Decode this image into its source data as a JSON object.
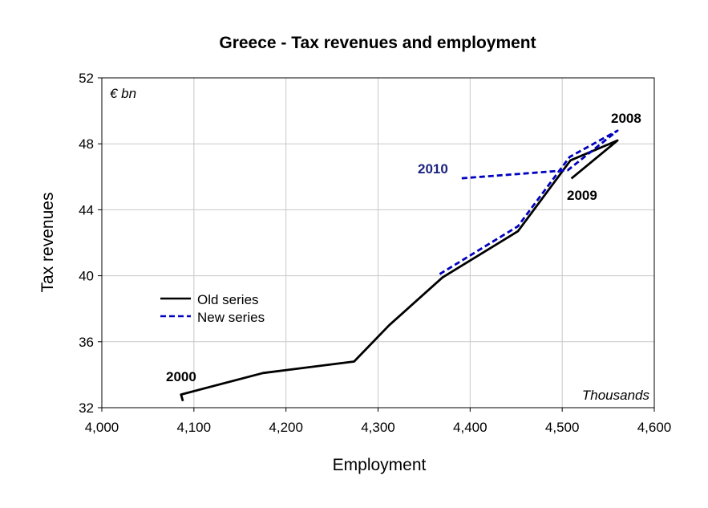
{
  "chart_data": {
    "type": "line",
    "title": "Greece - Tax revenues and employment",
    "xlabel": "Employment",
    "ylabel": "Tax revenues",
    "x_unit_label": "Thousands",
    "y_unit_label": "€ bn",
    "xlim": [
      4000,
      4600
    ],
    "ylim": [
      32,
      52
    ],
    "x_ticks": [
      4000,
      4100,
      4200,
      4300,
      4400,
      4500,
      4600
    ],
    "x_tick_labels": [
      "4,000",
      "4,100",
      "4,200",
      "4,300",
      "4,400",
      "4,500",
      "4,600"
    ],
    "y_ticks": [
      32,
      36,
      40,
      44,
      48,
      52
    ],
    "y_tick_labels": [
      "32",
      "36",
      "40",
      "44",
      "48",
      "52"
    ],
    "grid": true,
    "legend_position": "left",
    "series": [
      {
        "name": "Old series",
        "color": "#000000",
        "style": "solid",
        "points": [
          {
            "x": 4088,
            "y": 32.4
          },
          {
            "x": 4086,
            "y": 32.8
          },
          {
            "x": 4175,
            "y": 34.1
          },
          {
            "x": 4274,
            "y": 34.8
          },
          {
            "x": 4312,
            "y": 37.0
          },
          {
            "x": 4370,
            "y": 39.9
          },
          {
            "x": 4452,
            "y": 42.7
          },
          {
            "x": 4509,
            "y": 47.0
          },
          {
            "x": 4560,
            "y": 48.2
          },
          {
            "x": 4510,
            "y": 45.9
          }
        ]
      },
      {
        "name": "New series",
        "color": "#0000c0",
        "style": "dashed",
        "points": [
          {
            "x": 4367,
            "y": 40.1
          },
          {
            "x": 4452,
            "y": 43.0
          },
          {
            "x": 4508,
            "y": 47.2
          },
          {
            "x": 4560,
            "y": 48.8
          },
          {
            "x": 4506,
            "y": 46.4
          },
          {
            "x": 4388,
            "y": 45.9
          }
        ]
      }
    ],
    "annotations": [
      {
        "text": "2000",
        "color": "#000000"
      },
      {
        "text": "2008",
        "color": "#000000"
      },
      {
        "text": "2009",
        "color": "#000000"
      },
      {
        "text": "2010",
        "color": "#1a237e"
      }
    ]
  }
}
